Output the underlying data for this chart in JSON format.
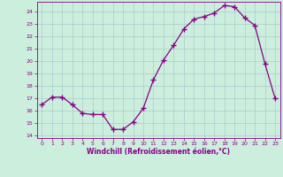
{
  "x_vals": [
    0,
    1,
    2,
    3,
    4,
    5,
    6,
    7,
    8,
    9,
    10,
    11,
    12,
    13,
    14,
    15,
    16,
    17,
    18,
    19,
    20,
    21,
    22,
    23
  ],
  "y_vals": [
    16.5,
    17.1,
    17.1,
    16.5,
    15.8,
    15.7,
    15.7,
    14.5,
    14.5,
    15.1,
    16.2,
    18.5,
    20.1,
    21.3,
    22.6,
    23.4,
    23.6,
    23.9,
    24.5,
    24.4,
    23.5,
    22.9,
    19.8,
    17.0
  ],
  "yticks": [
    14,
    15,
    16,
    17,
    18,
    19,
    20,
    21,
    22,
    23,
    24
  ],
  "xticks": [
    0,
    1,
    2,
    3,
    4,
    5,
    6,
    7,
    8,
    9,
    10,
    11,
    12,
    13,
    14,
    15,
    16,
    17,
    18,
    19,
    20,
    21,
    22,
    23
  ],
  "xlabel": "Windchill (Refroidissement éolien,°C)",
  "line_color": "#880088",
  "marker": "+",
  "marker_size": 4,
  "background_color": "#cceedd",
  "grid_color": "#aacccc",
  "xlim": [
    -0.5,
    23.5
  ],
  "ylim": [
    13.8,
    24.8
  ]
}
